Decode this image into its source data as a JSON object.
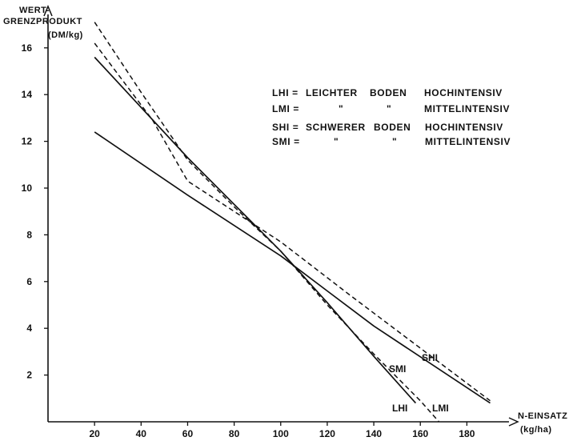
{
  "chart_data": {
    "type": "line",
    "ylabel_lines": [
      "WERT-",
      "GRENZPRODUKT",
      "(DM/kg)"
    ],
    "xlabel_lines": [
      "N-EINSATZ",
      "(kg/ha)"
    ],
    "xlim": [
      0,
      195
    ],
    "ylim": [
      0,
      17.5
    ],
    "x_ticks": [
      20,
      40,
      60,
      80,
      100,
      120,
      140,
      160,
      180
    ],
    "y_ticks": [
      2,
      4,
      6,
      8,
      10,
      12,
      14,
      16
    ],
    "legend": {
      "placement": "top-right",
      "rows": [
        {
          "abbr": "LHI =",
          "c1": "LEICHTER",
          "c2": "BODEN",
          "c3": "HOCHINTENSIV"
        },
        {
          "abbr": "LMI =",
          "c1": "\"",
          "c2": "\"",
          "c3": "MITTELINTENSIV"
        },
        {
          "abbr": "SHI =",
          "c1": "SCHWERER",
          "c2": "BODEN",
          "c3": "HOCHINTENSIV"
        },
        {
          "abbr": "SMI =",
          "c1": "\"",
          "c2": "\"",
          "c3": "MITTELINTENSIV"
        }
      ]
    },
    "series": [
      {
        "name": "LHI",
        "style": "dashed",
        "x": [
          20,
          40,
          60,
          80,
          100,
          120,
          140,
          160,
          168
        ],
        "y": [
          17.1,
          14.1,
          11.2,
          9.2,
          7.3,
          5.0,
          2.9,
          0.9,
          0.0
        ]
      },
      {
        "name": "LMI",
        "style": "solid",
        "x": [
          20,
          60,
          100,
          120,
          140,
          158
        ],
        "y": [
          15.6,
          11.3,
          7.3,
          5.1,
          2.8,
          0.8
        ]
      },
      {
        "name": "SHI",
        "style": "dashed",
        "x": [
          20,
          45,
          60,
          100,
          130,
          190
        ],
        "y": [
          16.2,
          12.9,
          10.3,
          7.7,
          5.4,
          0.9
        ]
      },
      {
        "name": "SMI",
        "style": "solid",
        "x": [
          20,
          60,
          100,
          120,
          140,
          190
        ],
        "y": [
          12.4,
          9.7,
          7.1,
          5.6,
          4.1,
          0.8
        ]
      }
    ]
  }
}
